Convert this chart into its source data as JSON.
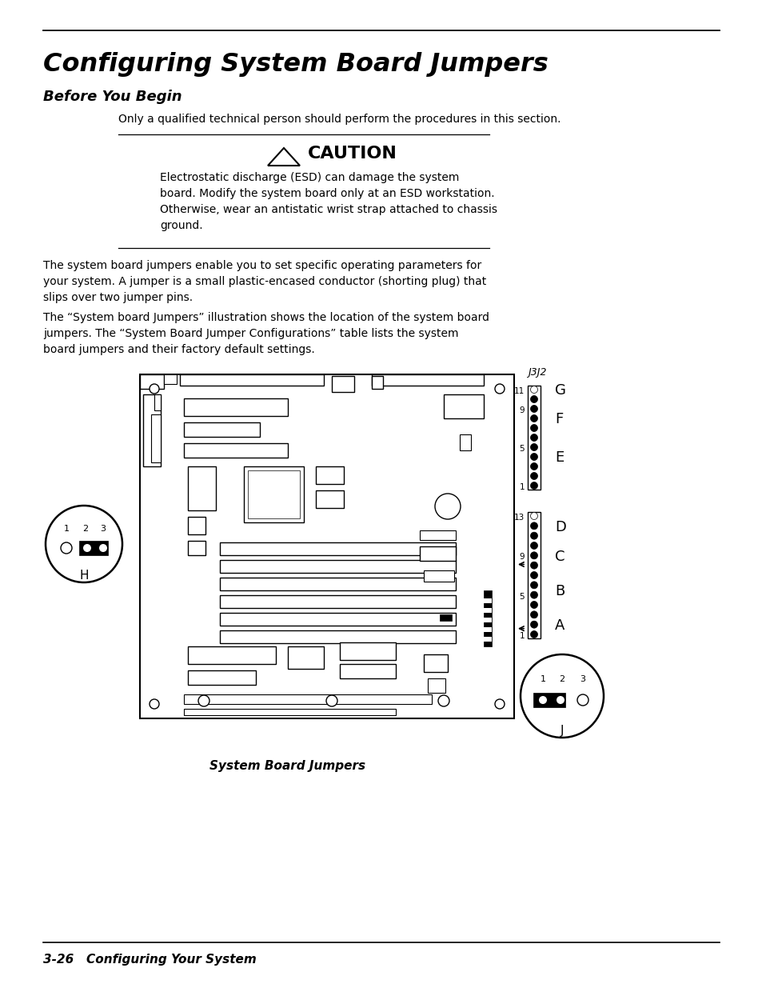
{
  "title": "Configuring System Board Jumpers",
  "subtitle": "Before You Begin",
  "body_text_1": "Only a qualified technical person should perform the procedures in this section.",
  "caution_title": "CAUTION",
  "caution_body": "Electrostatic discharge (ESD) can damage the system\nboard. Modify the system board only at an ESD workstation.\nOtherwise, wear an antistatic wrist strap attached to chassis\nground.",
  "body_text_2": "The system board jumpers enable you to set specific operating parameters for\nyour system. A jumper is a small plastic-encased conductor (shorting plug) that\nslips over two jumper pins.",
  "body_text_3": "The “System board Jumpers” illustration shows the location of the system board\njumpers. The “System Board Jumper Configurations” table lists the system\nboard jumpers and their factory default settings.",
  "figure_caption": "System Board Jumpers",
  "footer_text": "3-26   Configuring Your System",
  "bg_color": "#ffffff",
  "text_color": "#000000"
}
